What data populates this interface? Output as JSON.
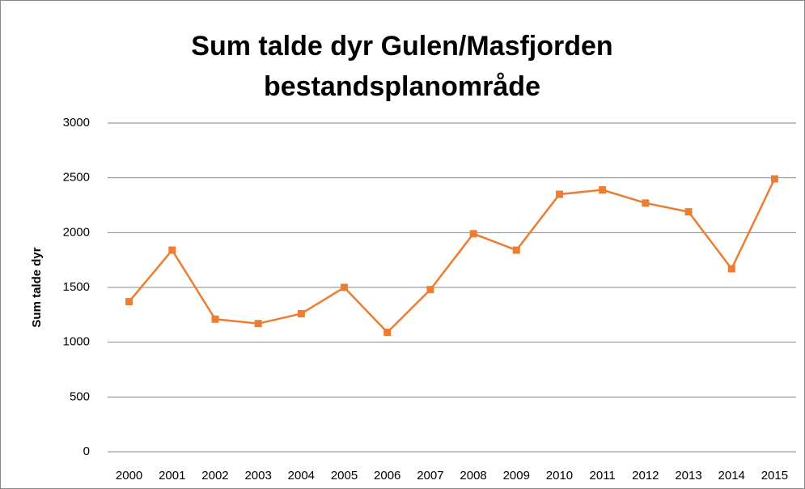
{
  "chart_data": {
    "type": "line",
    "title": "Sum talde dyr Gulen/Masfjorden bestandsplanområde",
    "y_label": "Sum talde dyr",
    "categories": [
      "2000",
      "2001",
      "2002",
      "2003",
      "2004",
      "2005",
      "2006",
      "2007",
      "2008",
      "2009",
      "2010",
      "2011",
      "2012",
      "2013",
      "2014",
      "2015"
    ],
    "series": [
      {
        "name": "Sum talde dyr",
        "color": "#ed7d31",
        "values": [
          1370,
          1840,
          1210,
          1170,
          1260,
          1500,
          1090,
          1480,
          1990,
          1840,
          2350,
          2390,
          2270,
          2190,
          1670,
          2490
        ]
      }
    ],
    "ylim": [
      0,
      3000
    ],
    "yticks": [
      0,
      500,
      1000,
      1500,
      2000,
      2500,
      3000
    ],
    "grid": true,
    "legend": false
  }
}
